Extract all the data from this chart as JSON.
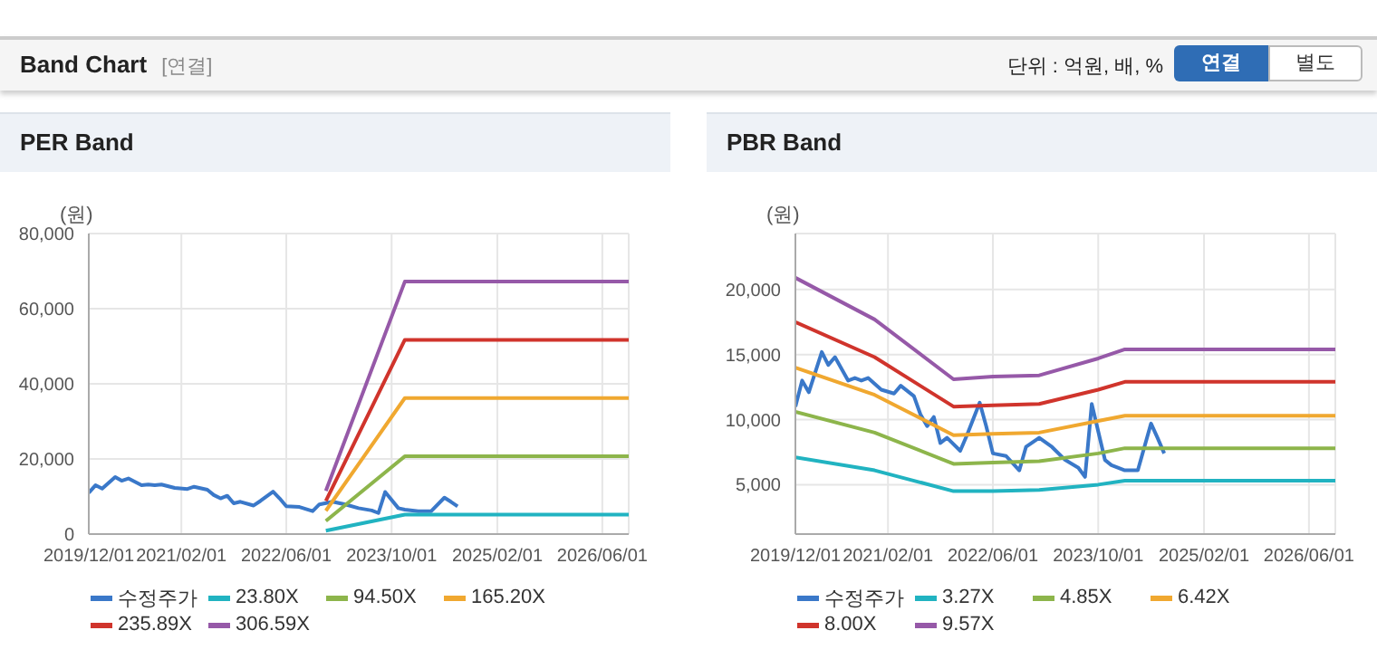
{
  "chart_data": [
    {
      "type": "line",
      "title": "PER Band",
      "ylabel": "(원)",
      "annotations": [
        "Band Chart",
        "[연결]",
        "단위 : 억원, 배, %",
        "연결",
        "별도"
      ],
      "legend": "bottom",
      "grid": true,
      "xlim": [
        "2019-12",
        "2026-10"
      ],
      "ylim": [
        0,
        80000
      ],
      "xticks": [
        {
          "value": "2019-12",
          "label": "2019/12/01"
        },
        {
          "value": "2021-02",
          "label": "2021/02/01"
        },
        {
          "value": "2022-06",
          "label": "2022/06/01"
        },
        {
          "value": "2023-10",
          "label": "2023/10/01"
        },
        {
          "value": "2025-02",
          "label": "2025/02/01"
        },
        {
          "value": "2026-06",
          "label": "2026/06/01"
        }
      ],
      "yticks": [
        0,
        {
          "value": 20000,
          "label": "20,000"
        },
        {
          "value": 40000,
          "label": "40,000"
        },
        {
          "value": 60000,
          "label": "60,000"
        },
        {
          "value": 80000,
          "label": "80,000"
        }
      ],
      "series": [
        {
          "name": "수정주가",
          "color": "#3a78c9",
          "x": [
            "2019-12",
            "2020-01",
            "2020-02",
            "2020-04",
            "2020-05",
            "2020-06",
            "2020-08",
            "2020-09",
            "2020-10",
            "2020-11",
            "2021-01",
            "2021-03",
            "2021-04",
            "2021-06",
            "2021-07",
            "2021-08",
            "2021-09",
            "2021-10",
            "2021-11",
            "2022-01",
            "2022-02",
            "2022-04",
            "2022-05",
            "2022-06",
            "2022-08",
            "2022-10",
            "2022-11",
            "2023-01",
            "2023-03",
            "2023-05",
            "2023-07",
            "2023-08",
            "2023-09",
            "2023-11",
            "2023-12",
            "2024-02",
            "2024-04",
            "2024-06",
            "2024-07",
            "2024-08"
          ],
          "values": [
            11000,
            13000,
            12100,
            15200,
            14200,
            14800,
            13000,
            13200,
            13000,
            13200,
            12300,
            12000,
            12600,
            11800,
            10400,
            9500,
            10200,
            8200,
            8600,
            7600,
            8800,
            11300,
            9500,
            7400,
            7200,
            6100,
            7900,
            8600,
            7900,
            6900,
            6300,
            5600,
            11200,
            6900,
            6500,
            6100,
            6100,
            9700,
            8600,
            7400
          ]
        },
        {
          "name": "23.80X",
          "color": "#21b3c1",
          "x": [
            "2022-12",
            "2023-12",
            "2026-10"
          ],
          "values": [
            900,
            5200,
            5200
          ]
        },
        {
          "name": "94.50X",
          "color": "#8db54b",
          "x": [
            "2022-12",
            "2023-12",
            "2026-10"
          ],
          "values": [
            3500,
            20700,
            20700
          ]
        },
        {
          "name": "165.20X",
          "color": "#f0a830",
          "x": [
            "2022-12",
            "2023-12",
            "2026-10"
          ],
          "values": [
            6200,
            36200,
            36200
          ]
        },
        {
          "name": "235.89X",
          "color": "#d0342c",
          "x": [
            "2022-12",
            "2023-12",
            "2026-10"
          ],
          "values": [
            8800,
            51700,
            51700
          ]
        },
        {
          "name": "306.59X",
          "color": "#9659a8",
          "x": [
            "2022-12",
            "2023-12",
            "2026-10"
          ],
          "values": [
            11500,
            67200,
            67200
          ]
        }
      ]
    },
    {
      "type": "line",
      "title": "PBR Band",
      "ylabel": "(원)",
      "legend": "bottom",
      "grid": true,
      "xlim": [
        "2019-12",
        "2026-10"
      ],
      "ylim": [
        1200,
        24300
      ],
      "xticks": [
        {
          "value": "2019-12",
          "label": "2019/12/01"
        },
        {
          "value": "2021-02",
          "label": "2021/02/01"
        },
        {
          "value": "2022-06",
          "label": "2022/06/01"
        },
        {
          "value": "2023-10",
          "label": "2023/10/01"
        },
        {
          "value": "2025-02",
          "label": "2025/02/01"
        },
        {
          "value": "2026-06",
          "label": "2026/06/01"
        }
      ],
      "yticks": [
        {
          "value": 5000,
          "label": "5,000"
        },
        {
          "value": 10000,
          "label": "10,000"
        },
        {
          "value": 15000,
          "label": "15,000"
        },
        {
          "value": 20000,
          "label": "20,000"
        }
      ],
      "series": [
        {
          "name": "수정주가",
          "color": "#3a78c9",
          "x": [
            "2019-12",
            "2020-01",
            "2020-02",
            "2020-04",
            "2020-05",
            "2020-06",
            "2020-08",
            "2020-09",
            "2020-10",
            "2020-11",
            "2021-01",
            "2021-03",
            "2021-04",
            "2021-06",
            "2021-07",
            "2021-08",
            "2021-09",
            "2021-10",
            "2021-11",
            "2022-01",
            "2022-02",
            "2022-04",
            "2022-05",
            "2022-06",
            "2022-08",
            "2022-10",
            "2022-11",
            "2023-01",
            "2023-03",
            "2023-05",
            "2023-07",
            "2023-08",
            "2023-09",
            "2023-11",
            "2023-12",
            "2024-02",
            "2024-04",
            "2024-06",
            "2024-07",
            "2024-08"
          ],
          "values": [
            11000,
            13000,
            12100,
            15200,
            14200,
            14800,
            13000,
            13200,
            13000,
            13200,
            12300,
            12000,
            12600,
            11800,
            10400,
            9500,
            10200,
            8200,
            8600,
            7600,
            8800,
            11300,
            9500,
            7400,
            7200,
            6100,
            7900,
            8600,
            7900,
            6900,
            6300,
            5600,
            11200,
            6900,
            6500,
            6100,
            6100,
            9700,
            8600,
            7400
          ]
        },
        {
          "name": "3.27X",
          "color": "#21b3c1",
          "x": [
            "2019-12",
            "2020-12",
            "2021-12",
            "2022-06",
            "2023-01",
            "2023-10",
            "2024-02",
            "2026-10"
          ],
          "values": [
            7100,
            6100,
            4500,
            4500,
            4600,
            5000,
            5300,
            5300
          ]
        },
        {
          "name": "4.85X",
          "color": "#8db54b",
          "x": [
            "2019-12",
            "2020-12",
            "2021-12",
            "2022-06",
            "2023-01",
            "2023-10",
            "2024-02",
            "2026-10"
          ],
          "values": [
            10600,
            9000,
            6600,
            6700,
            6800,
            7400,
            7800,
            7800
          ]
        },
        {
          "name": "6.42X",
          "color": "#f0a830",
          "x": [
            "2019-12",
            "2020-12",
            "2021-12",
            "2022-06",
            "2023-01",
            "2023-10",
            "2024-02",
            "2026-10"
          ],
          "values": [
            14000,
            11900,
            8800,
            8900,
            9000,
            9900,
            10300,
            10300
          ]
        },
        {
          "name": "8.00X",
          "color": "#d0342c",
          "x": [
            "2019-12",
            "2020-12",
            "2021-12",
            "2022-06",
            "2023-01",
            "2023-10",
            "2024-02",
            "2026-10"
          ],
          "values": [
            17500,
            14800,
            11000,
            11100,
            11200,
            12300,
            12900,
            12900
          ]
        },
        {
          "name": "9.57X",
          "color": "#9659a8",
          "x": [
            "2019-12",
            "2020-12",
            "2021-12",
            "2022-06",
            "2023-01",
            "2023-10",
            "2024-02",
            "2026-10"
          ],
          "values": [
            20900,
            17700,
            13100,
            13300,
            13400,
            14700,
            15400,
            15400
          ]
        }
      ]
    }
  ]
}
